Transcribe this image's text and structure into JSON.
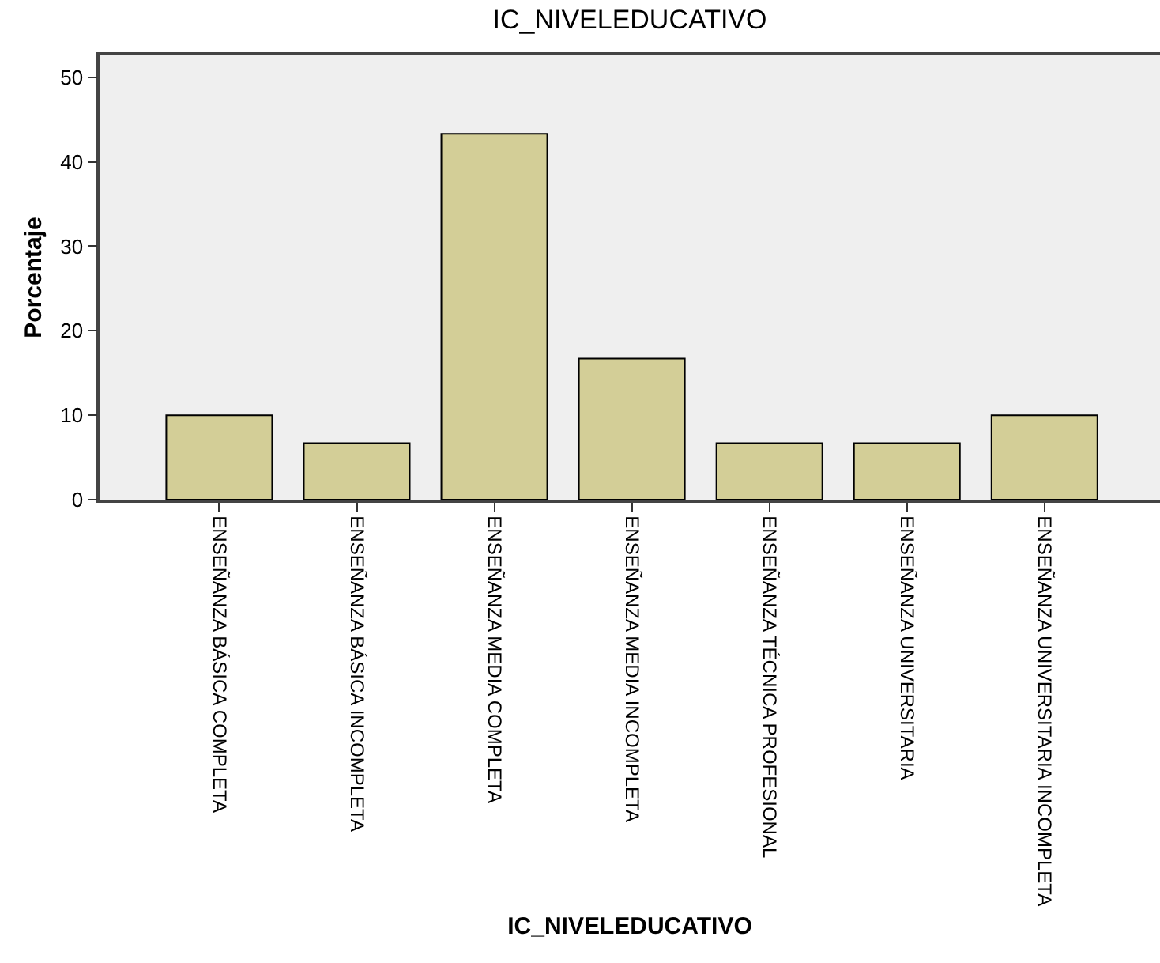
{
  "chart_data": {
    "type": "bar",
    "title": "IC_NIVELEDUCATIVO",
    "xlabel": "IC_NIVELEDUCATIVO",
    "ylabel": "Porcentaje",
    "categories": [
      "ENSEÑANZA BÁSICA COMPLETA",
      "ENSEÑANZA BÁSICA INCOMPLETA",
      "ENSEÑANZA MEDIA COMPLETA",
      "ENSEÑANZA MEDIA INCOMPLETA",
      "ENSEÑANZA TÉCNICA PROFESIONAL",
      "ENSEÑANZA UNIVERSITARIA",
      "ENSEÑANZA UNIVERSITARIA INCOMPLETA"
    ],
    "values": [
      10,
      6.7,
      43.3,
      16.7,
      6.7,
      6.7,
      10
    ],
    "color": "#d3ce97",
    "ylim": [
      0,
      52.6
    ],
    "yticks": [
      0,
      10,
      20,
      30,
      40,
      50
    ]
  }
}
